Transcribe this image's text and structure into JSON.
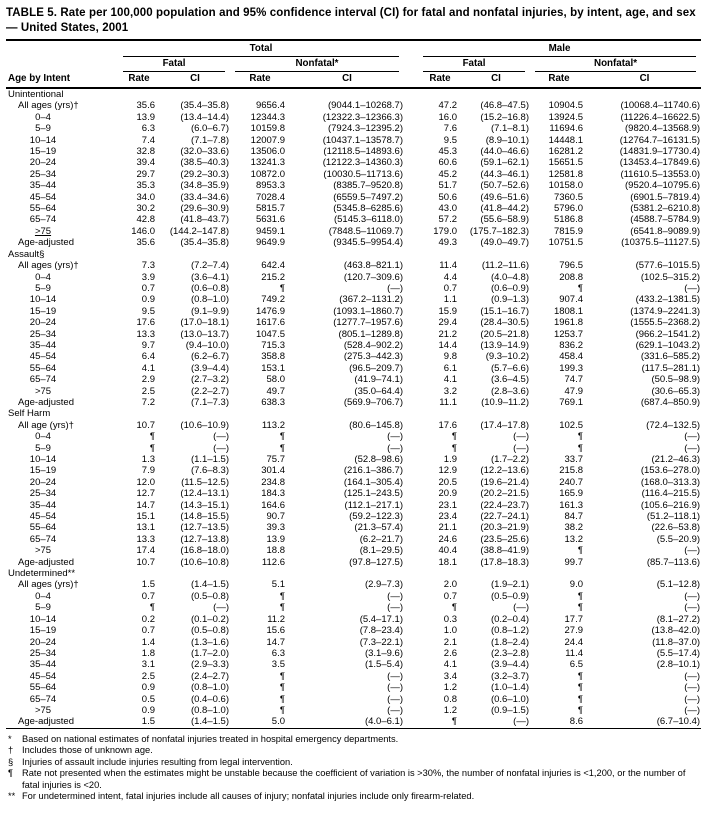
{
  "title": "TABLE 5. Rate per 100,000 population and 95% confidence interval (CI) for fatal and nonfatal injuries, by intent, age, and sex — United States, 2001",
  "header": {
    "row_label": "Age by Intent",
    "rate_label": "Rate",
    "ci_label": "CI",
    "groups": [
      {
        "label": "Total",
        "subgroups": [
          {
            "label": "Fatal"
          },
          {
            "label": "Nonfatal*"
          }
        ]
      },
      {
        "label": "Male",
        "subgroups": [
          {
            "label": "Fatal"
          },
          {
            "label": "Nonfatal*"
          }
        ]
      }
    ]
  },
  "sections": [
    {
      "name": "Unintentional",
      "rows": [
        {
          "label": "All ages (yrs)†",
          "cells": [
            "35.6",
            "(35.4–35.8)",
            "9656.4",
            "(9044.1–10268.7)",
            "47.2",
            "(46.8–47.5)",
            "10904.5",
            "(10068.4–11740.6)"
          ]
        },
        {
          "label": "0–4",
          "cells": [
            "13.9",
            "(13.4–14.4)",
            "12344.3",
            "(12322.3–12366.3)",
            "16.0",
            "(15.2–16.8)",
            "13924.5",
            "(11226.4–16622.5)"
          ]
        },
        {
          "label": "5–9",
          "cells": [
            "6.3",
            "(6.0–6.7)",
            "10159.8",
            "(7924.3–12395.2)",
            "7.6",
            "(7.1–8.1)",
            "11694.6",
            "(9820.4–13568.9)"
          ]
        },
        {
          "label": "10–14",
          "cells": [
            "7.4",
            "(7.1–7.8)",
            "12007.9",
            "(10437.1–13578.7)",
            "9.5",
            "(8.9–10.1)",
            "14448.1",
            "(12764.7–16131.5)"
          ]
        },
        {
          "label": "15–19",
          "cells": [
            "32.8",
            "(32.0–33.6)",
            "13506.0",
            "(12118.5–14893.6)",
            "45.3",
            "(44.0–46.6)",
            "16281.2",
            "(14831.9–17730.4)"
          ]
        },
        {
          "label": "20–24",
          "cells": [
            "39.4",
            "(38.5–40.3)",
            "13241.3",
            "(12122.3–14360.3)",
            "60.6",
            "(59.1–62.1)",
            "15651.5",
            "(13453.4–17849.6)"
          ]
        },
        {
          "label": "25–34",
          "cells": [
            "29.7",
            "(29.2–30.3)",
            "10872.0",
            "(10030.5–11713.6)",
            "45.2",
            "(44.3–46.1)",
            "12581.8",
            "(11610.5–13553.0)"
          ]
        },
        {
          "label": "35–44",
          "cells": [
            "35.3",
            "(34.8–35.9)",
            "8953.3",
            "(8385.7–9520.8)",
            "51.7",
            "(50.7–52.6)",
            "10158.0",
            "(9520.4–10795.6)"
          ]
        },
        {
          "label": "45–54",
          "cells": [
            "34.0",
            "(33.4–34.6)",
            "7028.4",
            "(6559.5–7497.2)",
            "50.6",
            "(49.6–51.6)",
            "7360.5",
            "(6901.5–7819.4)"
          ]
        },
        {
          "label": "55–64",
          "cells": [
            "30.2",
            "(29.6–30.9)",
            "5815.7",
            "(5345.8–6285.6)",
            "43.0",
            "(41.8–44.2)",
            "5796.0",
            "(5381.2–6210.8)"
          ]
        },
        {
          "label": "65–74",
          "cells": [
            "42.8",
            "(41.8–43.7)",
            "5631.6",
            "(5145.3–6118.0)",
            "57.2",
            "(55.6–58.9)",
            "5186.8",
            "(4588.7–5784.9)"
          ]
        },
        {
          "label": ">75",
          "u": true,
          "cells": [
            "146.0",
            "(144.2–147.8)",
            "9459.1",
            "(7848.5–11069.7)",
            "179.0",
            "(175.7–182.3)",
            "7815.9",
            "(6541.8–9089.9)"
          ]
        },
        {
          "label": "Age-adjusted",
          "cells": [
            "35.6",
            "(35.4–35.8)",
            "9649.9",
            "(9345.5–9954.4)",
            "49.3",
            "(49.0–49.7)",
            "10751.5",
            "(10375.5–11127.5)"
          ]
        }
      ]
    },
    {
      "name": "Assault§",
      "rows": [
        {
          "label": "All ages (yrs)†",
          "cells": [
            "7.3",
            "(7.2–7.4)",
            "642.4",
            "(463.8–821.1)",
            "11.4",
            "(11.2–11.6)",
            "796.5",
            "(577.6–1015.5)"
          ]
        },
        {
          "label": "0–4",
          "cells": [
            "3.9",
            "(3.6–4.1)",
            "215.2",
            "(120.7–309.6)",
            "4.4",
            "(4.0–4.8)",
            "208.8",
            "(102.5–315.2)"
          ]
        },
        {
          "label": "5–9",
          "cells": [
            "0.7",
            "(0.6–0.8)",
            "¶",
            "(—)",
            "0.7",
            "(0.6–0.9)",
            "¶",
            "(—)"
          ]
        },
        {
          "label": "10–14",
          "cells": [
            "0.9",
            "(0.8–1.0)",
            "749.2",
            "(367.2–1131.2)",
            "1.1",
            "(0.9–1.3)",
            "907.4",
            "(433.2–1381.5)"
          ]
        },
        {
          "label": "15–19",
          "cells": [
            "9.5",
            "(9.1–9.9)",
            "1476.9",
            "(1093.1–1860.7)",
            "15.9",
            "(15.1–16.7)",
            "1808.1",
            "(1374.9–2241.3)"
          ]
        },
        {
          "label": "20–24",
          "cells": [
            "17.6",
            "(17.0–18.1)",
            "1617.6",
            "(1277.7–1957.6)",
            "29.4",
            "(28.4–30.5)",
            "1961.8",
            "(1555.5–2368.2)"
          ]
        },
        {
          "label": "25–34",
          "cells": [
            "13.3",
            "(13.0–13.7)",
            "1047.5",
            "(805.1–1289.8)",
            "21.2",
            "(20.5–21.8)",
            "1253.7",
            "(966.2–1541.2)"
          ]
        },
        {
          "label": "35–44",
          "cells": [
            "9.7",
            "(9.4–10.0)",
            "715.3",
            "(528.4–902.2)",
            "14.4",
            "(13.9–14.9)",
            "836.2",
            "(629.1–1043.2)"
          ]
        },
        {
          "label": "45–54",
          "cells": [
            "6.4",
            "(6.2–6.7)",
            "358.8",
            "(275.3–442.3)",
            "9.8",
            "(9.3–10.2)",
            "458.4",
            "(331.6–585.2)"
          ]
        },
        {
          "label": "55–64",
          "cells": [
            "4.1",
            "(3.9–4.4)",
            "153.1",
            "(96.5–209.7)",
            "6.1",
            "(5.7–6.6)",
            "199.3",
            "(117.5–281.1)"
          ]
        },
        {
          "label": "65–74",
          "cells": [
            "2.9",
            "(2.7–3.2)",
            "58.0",
            "(41.9–74.1)",
            "4.1",
            "(3.6–4.5)",
            "74.7",
            "(50.5–98.9)"
          ]
        },
        {
          "label": ">75",
          "cells": [
            "2.5",
            "(2.2–2.7)",
            "49.7",
            "(35.0–64.4)",
            "3.2",
            "(2.8–3.6)",
            "47.9",
            "(30.6–65.3)"
          ]
        },
        {
          "label": "Age-adjusted",
          "cells": [
            "7.2",
            "(7.1–7.3)",
            "638.3",
            "(569.9–706.7)",
            "11.1",
            "(10.9–11.2)",
            "769.1",
            "(687.4–850.9)"
          ]
        }
      ]
    },
    {
      "name": "Self Harm",
      "rows": [
        {
          "label": "All age (yrs)†",
          "cells": [
            "10.7",
            "(10.6–10.9)",
            "113.2",
            "(80.6–145.8)",
            "17.6",
            "(17.4–17.8)",
            "102.5",
            "(72.4–132.5)"
          ]
        },
        {
          "label": "0–4",
          "cells": [
            "¶",
            "(—)",
            "¶",
            "(—)",
            "¶",
            "(—)",
            "¶",
            "(—)"
          ]
        },
        {
          "label": "5–9",
          "cells": [
            "¶",
            "(—)",
            "¶",
            "(—)",
            "¶",
            "(—)",
            "¶",
            "(—)"
          ]
        },
        {
          "label": "10–14",
          "cells": [
            "1.3",
            "(1.1–1.5)",
            "75.7",
            "(52.8–98.6)",
            "1.9",
            "(1.7–2.2)",
            "33.7",
            "(21.2–46.3)"
          ]
        },
        {
          "label": "15–19",
          "cells": [
            "7.9",
            "(7.6–8.3)",
            "301.4",
            "(216.1–386.7)",
            "12.9",
            "(12.2–13.6)",
            "215.8",
            "(153.6–278.0)"
          ]
        },
        {
          "label": "20–24",
          "cells": [
            "12.0",
            "(11.5–12.5)",
            "234.8",
            "(164.1–305.4)",
            "20.5",
            "(19.6–21.4)",
            "240.7",
            "(168.0–313.3)"
          ]
        },
        {
          "label": "25–34",
          "cells": [
            "12.7",
            "(12.4–13.1)",
            "184.3",
            "(125.1–243.5)",
            "20.9",
            "(20.2–21.5)",
            "165.9",
            "(116.4–215.5)"
          ]
        },
        {
          "label": "35–44",
          "cells": [
            "14.7",
            "(14.3–15.1)",
            "164.6",
            "(112.1–217.1)",
            "23.1",
            "(22.4–23.7)",
            "161.3",
            "(105.6–216.9)"
          ]
        },
        {
          "label": "45–54",
          "cells": [
            "15.1",
            "(14.8–15.5)",
            "90.7",
            "(59.2–122.3)",
            "23.4",
            "(22.7–24.1)",
            "84.7",
            "(51.2–118.1)"
          ]
        },
        {
          "label": "55–64",
          "cells": [
            "13.1",
            "(12.7–13.5)",
            "39.3",
            "(21.3–57.4)",
            "21.1",
            "(20.3–21.9)",
            "38.2",
            "(22.6–53.8)"
          ]
        },
        {
          "label": "65–74",
          "cells": [
            "13.3",
            "(12.7–13.8)",
            "13.9",
            "(6.2–21.7)",
            "24.6",
            "(23.5–25.6)",
            "13.2",
            "(5.5–20.9)"
          ]
        },
        {
          "label": ">75",
          "cells": [
            "17.4",
            "(16.8–18.0)",
            "18.8",
            "(8.1–29.5)",
            "40.4",
            "(38.8–41.9)",
            "¶",
            "(—)"
          ]
        },
        {
          "label": "Age-adjusted",
          "cells": [
            "10.7",
            "(10.6–10.8)",
            "112.6",
            "(97.8–127.5)",
            "18.1",
            "(17.8–18.3)",
            "99.7",
            "(85.7–113.6)"
          ]
        }
      ]
    },
    {
      "name": "Undetermined**",
      "rows": [
        {
          "label": "All ages (yrs)†",
          "cells": [
            "1.5",
            "(1.4–1.5)",
            "5.1",
            "(2.9–7.3)",
            "2.0",
            "(1.9–2.1)",
            "9.0",
            "(5.1–12.8)"
          ]
        },
        {
          "label": "0–4",
          "cells": [
            "0.7",
            "(0.5–0.8)",
            "¶",
            "(—)",
            "0.7",
            "(0.5–0.9)",
            "¶",
            "(—)"
          ]
        },
        {
          "label": "5–9",
          "cells": [
            "¶",
            "(—)",
            "¶",
            "(—)",
            "¶",
            "(—)",
            "¶",
            "(—)"
          ]
        },
        {
          "label": "10–14",
          "cells": [
            "0.2",
            "(0.1–0.2)",
            "11.2",
            "(5.4–17.1)",
            "0.3",
            "(0.2–0.4)",
            "17.7",
            "(8.1–27.2)"
          ]
        },
        {
          "label": "15–19",
          "cells": [
            "0.7",
            "(0.5–0.8)",
            "15.6",
            "(7.8–23.4)",
            "1.0",
            "(0.8–1.2)",
            "27.9",
            "(13.8–42.0)"
          ]
        },
        {
          "label": "20–24",
          "cells": [
            "1.4",
            "(1.3–1.6)",
            "14.7",
            "(7.3–22.1)",
            "2.1",
            "(1.8–2.4)",
            "24.4",
            "(11.8–37.0)"
          ]
        },
        {
          "label": "25–34",
          "cells": [
            "1.8",
            "(1.7–2.0)",
            "6.3",
            "(3.1–9.6)",
            "2.6",
            "(2.3–2.8)",
            "11.4",
            "(5.5–17.4)"
          ]
        },
        {
          "label": "35–44",
          "cells": [
            "3.1",
            "(2.9–3.3)",
            "3.5",
            "(1.5–5.4)",
            "4.1",
            "(3.9–4.4)",
            "6.5",
            "(2.8–10.1)"
          ]
        },
        {
          "label": "45–54",
          "cells": [
            "2.5",
            "(2.4–2.7)",
            "¶",
            "(—)",
            "3.4",
            "(3.2–3.7)",
            "¶",
            "(—)"
          ]
        },
        {
          "label": "55–64",
          "cells": [
            "0.9",
            "(0.8–1.0)",
            "¶",
            "(—)",
            "1.2",
            "(1.0–1.4)",
            "¶",
            "(—)"
          ]
        },
        {
          "label": "65–74",
          "cells": [
            "0.5",
            "(0.4–0.6)",
            "¶",
            "(—)",
            "0.8",
            "(0.6–1.0)",
            "¶",
            "(—)"
          ]
        },
        {
          "label": ">75",
          "cells": [
            "0.9",
            "(0.8–1.0)",
            "¶",
            "(—)",
            "1.2",
            "(0.9–1.5)",
            "¶",
            "(—)"
          ]
        },
        {
          "label": "Age-adjusted",
          "cells": [
            "1.5",
            "(1.4–1.5)",
            "5.0",
            "(4.0–6.1)",
            "¶",
            "(—)",
            "8.6",
            "(6.7–10.4)"
          ]
        }
      ]
    }
  ],
  "footnotes": [
    {
      "mark": "*",
      "text": "Based on national estimates of nonfatal injuries treated in hospital emergency departments."
    },
    {
      "mark": "†",
      "text": "Includes those of unknown age."
    },
    {
      "mark": "§",
      "text": "Injuries of assault include injuries resulting from legal intervention."
    },
    {
      "mark": "¶",
      "text": "Rate not presented when the estimates might be unstable because the coefficient of variation is >30%, the number of nonfatal injuries is <1,200, or the number of fatal injuries is <20."
    },
    {
      "mark": "**",
      "text": "For undetermined intent, fatal injuries include all causes of injury; nonfatal injuries include only firearm-related."
    }
  ]
}
